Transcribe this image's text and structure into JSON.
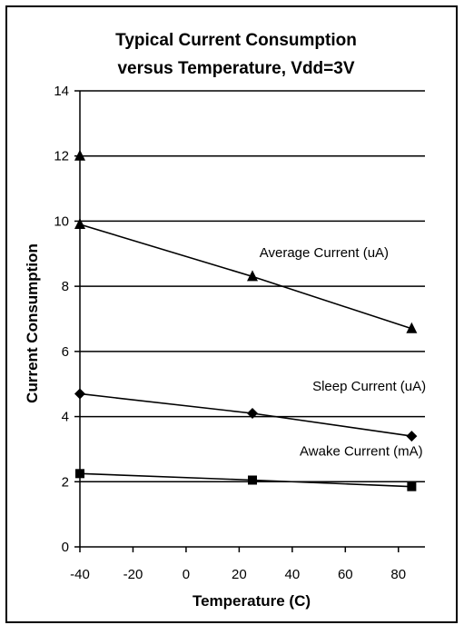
{
  "chart_data": {
    "type": "line",
    "title_line1": "Typical Current Consumption",
    "title_line2": "versus Temperature, Vdd=3V",
    "xlabel": "Temperature (C)",
    "ylabel": "Current Consumption",
    "xlim": [
      -40,
      90
    ],
    "ylim": [
      0,
      14
    ],
    "xticks": [
      -40,
      -20,
      0,
      20,
      40,
      60,
      80
    ],
    "yticks": [
      0,
      2,
      4,
      6,
      8,
      10,
      12,
      14
    ],
    "grid": "horizontal",
    "series": [
      {
        "name": "Average Current (uA)",
        "marker": "triangle",
        "x": [
          -40,
          25,
          85
        ],
        "y": [
          9.9,
          8.3,
          6.7
        ],
        "extra_points": [
          {
            "x": -40,
            "y": 12.0
          }
        ],
        "label_at": {
          "x": 52,
          "y": 8.9
        }
      },
      {
        "name": "Sleep Current (uA)",
        "marker": "diamond",
        "x": [
          -40,
          25,
          85
        ],
        "y": [
          4.7,
          4.1,
          3.4
        ],
        "label_at": {
          "x": 69,
          "y": 4.8
        }
      },
      {
        "name": "Awake Current (mA)",
        "marker": "square",
        "x": [
          -40,
          25,
          85
        ],
        "y": [
          2.25,
          2.05,
          1.85
        ],
        "label_at": {
          "x": 66,
          "y": 2.8
        }
      }
    ]
  }
}
